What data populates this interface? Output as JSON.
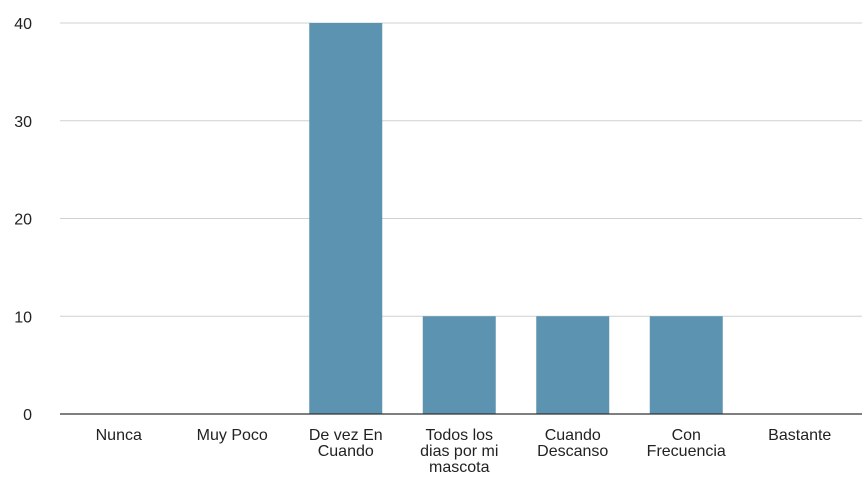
{
  "chart_data": {
    "type": "bar",
    "categories": [
      [
        "Nunca"
      ],
      [
        "Muy Poco"
      ],
      [
        "De vez En",
        "Cuando"
      ],
      [
        "Todos los",
        "dias por mi",
        "mascota"
      ],
      [
        "Cuando",
        "Descanso"
      ],
      [
        "Con",
        "Frecuencia"
      ],
      [
        "Bastante"
      ]
    ],
    "values": [
      0,
      0,
      40,
      10,
      10,
      10,
      0
    ],
    "ylim": [
      0,
      40
    ],
    "yticks": [
      0,
      10,
      20,
      30,
      40
    ],
    "grid": true,
    "colors": {
      "bar": "#5b93b0",
      "grid": "#d0d0d0",
      "axis": "#333333",
      "text": "#222222"
    }
  }
}
